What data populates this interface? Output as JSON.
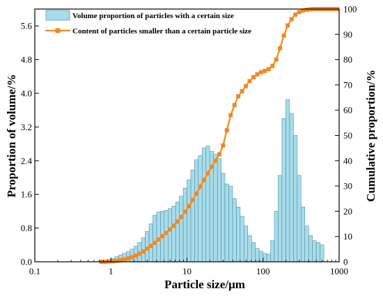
{
  "chart_data": {
    "type": "bar",
    "xlabel": "Particle size/μm",
    "ylabel_left": "Proportion of volume/%",
    "ylabel_right": "Cumulative proportion/%",
    "x_scale": "log",
    "xlim": [
      0.1,
      1000
    ],
    "ylim_left": [
      0,
      6
    ],
    "ylim_right": [
      0,
      100
    ],
    "x_ticks": [
      {
        "v": 0.1,
        "label": "0.1"
      },
      {
        "v": 1,
        "label": "1"
      },
      {
        "v": 10,
        "label": "10"
      },
      {
        "v": 100,
        "label": "100"
      },
      {
        "v": 1000,
        "label": "1000"
      }
    ],
    "y_left_ticks": [
      {
        "v": 0,
        "label": "0.0"
      },
      {
        "v": 0.8,
        "label": "0.8"
      },
      {
        "v": 1.6,
        "label": "1.6"
      },
      {
        "v": 2.4,
        "label": "2.4"
      },
      {
        "v": 3.2,
        "label": "3.2"
      },
      {
        "v": 4.0,
        "label": "4.0"
      },
      {
        "v": 4.8,
        "label": "4.8"
      },
      {
        "v": 5.6,
        "label": "5.6"
      }
    ],
    "y_right_ticks": [
      {
        "v": 0,
        "label": "0"
      },
      {
        "v": 10,
        "label": "10"
      },
      {
        "v": 20,
        "label": "20"
      },
      {
        "v": 30,
        "label": "30"
      },
      {
        "v": 40,
        "label": "40"
      },
      {
        "v": 50,
        "label": "50"
      },
      {
        "v": 60,
        "label": "60"
      },
      {
        "v": 70,
        "label": "70"
      },
      {
        "v": 80,
        "label": "80"
      },
      {
        "v": 90,
        "label": "90"
      },
      {
        "v": 100,
        "label": "100"
      }
    ],
    "legend_position": "top-left",
    "series": [
      {
        "name": "Volume proportion of particles with a certain size",
        "kind": "bar",
        "axis": "left",
        "color": "#a8dcea",
        "x": [
          0.75,
          0.85,
          0.95,
          1.06,
          1.2,
          1.34,
          1.5,
          1.69,
          1.89,
          2.12,
          2.38,
          2.67,
          3.0,
          3.36,
          3.77,
          4.23,
          4.74,
          5.32,
          5.97,
          6.69,
          7.51,
          8.42,
          9.45,
          10.6,
          11.9,
          13.3,
          14.9,
          16.8,
          18.8,
          21.1,
          23.7,
          26.6,
          29.8,
          33.4,
          37.5,
          42.1,
          47.2,
          53.0,
          59.4,
          66.7,
          74.8,
          83.9,
          94.1,
          105.6,
          118.5,
          133,
          149,
          167,
          188,
          211,
          237,
          266,
          298,
          334,
          375,
          421,
          472,
          530,
          595
        ],
        "values": [
          0.01,
          0.03,
          0.05,
          0.08,
          0.12,
          0.16,
          0.2,
          0.24,
          0.3,
          0.37,
          0.46,
          0.57,
          0.72,
          0.9,
          1.1,
          1.18,
          1.2,
          1.22,
          1.26,
          1.32,
          1.42,
          1.56,
          1.75,
          1.95,
          2.18,
          2.42,
          2.52,
          2.7,
          2.75,
          2.62,
          2.55,
          2.45,
          2.1,
          1.85,
          1.8,
          1.5,
          1.3,
          1.08,
          0.85,
          0.62,
          0.46,
          0.32,
          0.25,
          0.2,
          0.18,
          0.5,
          1.2,
          2.05,
          3.4,
          3.85,
          3.52,
          3.0,
          2.05,
          1.3,
          0.85,
          0.62,
          0.5,
          0.46,
          0.4
        ]
      },
      {
        "name": "Content of particles smaller than a certain particle size",
        "kind": "line",
        "axis": "right",
        "color": "#f08a24",
        "x": [
          0.75,
          0.84,
          0.94,
          1.06,
          1.19,
          1.33,
          1.5,
          1.68,
          1.88,
          2.11,
          2.37,
          2.66,
          2.99,
          3.35,
          3.76,
          4.22,
          4.73,
          5.31,
          5.96,
          6.68,
          7.5,
          8.41,
          9.44,
          10.6,
          11.9,
          13.3,
          14.9,
          16.8,
          18.8,
          21.1,
          23.7,
          26.6,
          29.8,
          33.4,
          37.5,
          42.1,
          47.2,
          53.0,
          59.4,
          66.7,
          74.8,
          83.9,
          94.1,
          105.6,
          118.5,
          133,
          149,
          167,
          188,
          211,
          237,
          266,
          298,
          334,
          375,
          421,
          472,
          530,
          595,
          668,
          749,
          841,
          944
        ],
        "values": [
          0.0,
          0.0,
          0.1,
          0.2,
          0.4,
          0.6,
          0.9,
          1.3,
          1.8,
          2.4,
          3.2,
          4.1,
          5.2,
          6.3,
          7.5,
          8.8,
          10.1,
          11.4,
          12.8,
          14.3,
          15.9,
          17.7,
          19.8,
          22.0,
          24.4,
          27.0,
          29.7,
          32.4,
          35.0,
          37.6,
          40.0,
          42.5,
          46.0,
          52.0,
          58.0,
          62.0,
          65.5,
          67.5,
          69.5,
          71.5,
          73.0,
          74.2,
          75.0,
          75.5,
          76.2,
          77.5,
          80.0,
          84.5,
          89.5,
          93.5,
          96.0,
          97.8,
          98.8,
          99.4,
          99.7,
          99.9,
          100.0,
          100.0,
          100.0,
          100.0,
          100.0,
          100.0,
          100.0
        ]
      }
    ]
  }
}
